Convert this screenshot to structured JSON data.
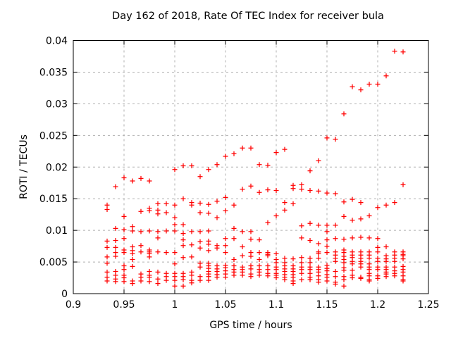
{
  "chart_data": {
    "type": "scatter",
    "title": "Day 162 of 2018, Rate Of TEC Index for receiver bula",
    "xlabel": "GPS time / hours",
    "ylabel": "ROTI / TECUs",
    "xlim": [
      0.9,
      1.25
    ],
    "ylim": [
      0,
      0.04
    ],
    "x_ticks": [
      {
        "v": 0.9,
        "label": "0.9"
      },
      {
        "v": 0.95,
        "label": "0.95"
      },
      {
        "v": 1.0,
        "label": "1"
      },
      {
        "v": 1.05,
        "label": "1.05"
      },
      {
        "v": 1.1,
        "label": "1.1"
      },
      {
        "v": 1.15,
        "label": "1.15"
      },
      {
        "v": 1.2,
        "label": "1.2"
      },
      {
        "v": 1.25,
        "label": "1.25"
      }
    ],
    "y_ticks": [
      {
        "v": 0,
        "label": "0"
      },
      {
        "v": 0.005,
        "label": "0.005"
      },
      {
        "v": 0.01,
        "label": "0.01"
      },
      {
        "v": 0.015,
        "label": "0.015"
      },
      {
        "v": 0.02,
        "label": "0.02"
      },
      {
        "v": 0.025,
        "label": "0.025"
      },
      {
        "v": 0.03,
        "label": "0.03"
      },
      {
        "v": 0.035,
        "label": "0.035"
      },
      {
        "v": 0.04,
        "label": "0.04"
      }
    ],
    "grid": true,
    "legend": "none",
    "marker": {
      "shape": "plus",
      "color": "#ff0000",
      "size": 7
    },
    "grid_color": "#b0b0b0",
    "border_color": "#000000",
    "series": [
      {
        "name": "ROTI",
        "epochs": [
          {
            "t": 0.9333,
            "values": [
              0.014,
              0.0133,
              0.0083,
              0.0073,
              0.0058,
              0.0048,
              0.0034,
              0.0026,
              0.002
            ]
          },
          {
            "t": 0.9417,
            "values": [
              0.0169,
              0.0103,
              0.0084,
              0.0073,
              0.0065,
              0.0059,
              0.0035,
              0.0029,
              0.0023,
              0.0019
            ]
          },
          {
            "t": 0.95,
            "values": [
              0.0183,
              0.0122,
              0.0101,
              0.0087,
              0.0069,
              0.0065,
              0.0044,
              0.0038,
              0.0029,
              0.0025,
              0.0019
            ]
          },
          {
            "t": 0.9583,
            "values": [
              0.0178,
              0.0106,
              0.0099,
              0.0074,
              0.0068,
              0.0063,
              0.0054,
              0.0043,
              0.002,
              0.0016
            ]
          },
          {
            "t": 0.9667,
            "values": [
              0.0182,
              0.013,
              0.0098,
              0.0076,
              0.0066,
              0.0031,
              0.0026,
              0.002
            ]
          },
          {
            "t": 0.975,
            "values": [
              0.0178,
              0.0135,
              0.0131,
              0.0099,
              0.0069,
              0.0066,
              0.0063,
              0.0058,
              0.0035,
              0.0029,
              0.0026,
              0.0019
            ]
          },
          {
            "t": 0.9833,
            "values": [
              0.0142,
              0.0132,
              0.0126,
              0.0098,
              0.0088,
              0.0066,
              0.0034,
              0.0023,
              0.0016
            ]
          },
          {
            "t": 0.9917,
            "values": [
              0.0142,
              0.0128,
              0.0099,
              0.0065,
              0.0032,
              0.0027,
              0.0021
            ]
          },
          {
            "t": 1.0,
            "values": [
              0.0196,
              0.014,
              0.012,
              0.0109,
              0.0099,
              0.0065,
              0.0047,
              0.0032,
              0.0027,
              0.0021,
              0.0012
            ]
          },
          {
            "t": 1.0083,
            "values": [
              0.0202,
              0.015,
              0.0109,
              0.0095,
              0.0085,
              0.0076,
              0.0057,
              0.0032,
              0.0027,
              0.0022,
              0.0012
            ]
          },
          {
            "t": 1.0167,
            "values": [
              0.0202,
              0.0144,
              0.014,
              0.0098,
              0.0077,
              0.0058,
              0.0034,
              0.0029,
              0.0021,
              0.0017
            ]
          },
          {
            "t": 1.025,
            "values": [
              0.0185,
              0.0143,
              0.0128,
              0.0098,
              0.0082,
              0.0072,
              0.0048,
              0.0042,
              0.0027,
              0.0021
            ]
          },
          {
            "t": 1.0333,
            "values": [
              0.0196,
              0.0141,
              0.0127,
              0.0099,
              0.0083,
              0.0078,
              0.0068,
              0.0048,
              0.0044,
              0.004,
              0.0035,
              0.0031,
              0.0027,
              0.0021
            ]
          },
          {
            "t": 1.0417,
            "values": [
              0.0204,
              0.0146,
              0.012,
              0.0076,
              0.0072,
              0.0044,
              0.0039,
              0.0035,
              0.003,
              0.0026
            ]
          },
          {
            "t": 1.05,
            "values": [
              0.0217,
              0.0152,
              0.0131,
              0.0087,
              0.0076,
              0.0065,
              0.0045,
              0.0041,
              0.0036,
              0.0031,
              0.0026
            ]
          },
          {
            "t": 1.0583,
            "values": [
              0.0221,
              0.014,
              0.0103,
              0.0087,
              0.0054,
              0.0044,
              0.0038,
              0.0034,
              0.0029
            ]
          },
          {
            "t": 1.0667,
            "values": [
              0.023,
              0.0165,
              0.0098,
              0.0074,
              0.006,
              0.0042,
              0.0038,
              0.0034,
              0.0029
            ]
          },
          {
            "t": 1.075,
            "values": [
              0.023,
              0.017,
              0.0098,
              0.0086,
              0.0065,
              0.0059,
              0.0044,
              0.0039,
              0.0031,
              0.0027
            ]
          },
          {
            "t": 1.0833,
            "values": [
              0.0204,
              0.016,
              0.0085,
              0.0065,
              0.0054,
              0.0044,
              0.0038,
              0.0034,
              0.0029
            ]
          },
          {
            "t": 1.0917,
            "values": [
              0.0203,
              0.0164,
              0.0112,
              0.0065,
              0.0062,
              0.006,
              0.0044,
              0.0038,
              0.0032,
              0.0028
            ]
          },
          {
            "t": 1.1,
            "values": [
              0.0223,
              0.0163,
              0.0123,
              0.0063,
              0.0054,
              0.0049,
              0.0042,
              0.0038,
              0.0032,
              0.0029,
              0.0025
            ]
          },
          {
            "t": 1.1083,
            "values": [
              0.0228,
              0.0144,
              0.0132,
              0.0056,
              0.0049,
              0.0044,
              0.0039,
              0.0035,
              0.003,
              0.0026,
              0.0022
            ]
          },
          {
            "t": 1.1167,
            "values": [
              0.0171,
              0.0166,
              0.0142,
              0.0055,
              0.0044,
              0.0039,
              0.0035,
              0.003,
              0.0026,
              0.002,
              0.0016
            ]
          },
          {
            "t": 1.125,
            "values": [
              0.0172,
              0.0165,
              0.0107,
              0.0088,
              0.0057,
              0.0049,
              0.0042,
              0.0038,
              0.0032,
              0.0022
            ]
          },
          {
            "t": 1.1333,
            "values": [
              0.0194,
              0.0163,
              0.0111,
              0.0084,
              0.0056,
              0.0049,
              0.0042,
              0.0038,
              0.0032,
              0.0026,
              0.0022
            ]
          },
          {
            "t": 1.1417,
            "values": [
              0.021,
              0.0162,
              0.0108,
              0.0079,
              0.0066,
              0.0063,
              0.0056,
              0.0042,
              0.0038,
              0.0034,
              0.0028,
              0.0022,
              0.0018
            ]
          },
          {
            "t": 1.15,
            "values": [
              0.0246,
              0.0159,
              0.0108,
              0.0098,
              0.0085,
              0.0075,
              0.0065,
              0.0045,
              0.004,
              0.0036,
              0.003,
              0.0026,
              0.002
            ]
          },
          {
            "t": 1.1583,
            "values": [
              0.0244,
              0.0158,
              0.0108,
              0.0087,
              0.0066,
              0.0061,
              0.0056,
              0.0051,
              0.0035,
              0.0027,
              0.0018,
              0.0015
            ]
          },
          {
            "t": 1.1667,
            "values": [
              0.0284,
              0.0145,
              0.0122,
              0.0086,
              0.0069,
              0.0065,
              0.0059,
              0.0054,
              0.0049,
              0.0041,
              0.0037,
              0.0027,
              0.0022,
              0.0012
            ]
          },
          {
            "t": 1.175,
            "values": [
              0.0327,
              0.0149,
              0.0116,
              0.0088,
              0.0066,
              0.0061,
              0.0057,
              0.0051,
              0.0047,
              0.0037,
              0.0029,
              0.0025
            ]
          },
          {
            "t": 1.1833,
            "values": [
              0.0322,
              0.0144,
              0.0118,
              0.0089,
              0.0066,
              0.0061,
              0.0056,
              0.0051,
              0.0047,
              0.0042,
              0.0026,
              0.0024
            ]
          },
          {
            "t": 1.1917,
            "values": [
              0.0331,
              0.0123,
              0.0088,
              0.0066,
              0.0061,
              0.0056,
              0.0047,
              0.0042,
              0.0038,
              0.0032,
              0.0028,
              0.0022,
              0.002
            ]
          },
          {
            "t": 1.2,
            "values": [
              0.0331,
              0.0136,
              0.0087,
              0.0073,
              0.0066,
              0.0056,
              0.0051,
              0.0042,
              0.0038,
              0.0028,
              0.0024
            ]
          },
          {
            "t": 1.2083,
            "values": [
              0.0344,
              0.014,
              0.0074,
              0.006,
              0.0055,
              0.0051,
              0.0042,
              0.0038,
              0.0034,
              0.0031,
              0.0027
            ]
          },
          {
            "t": 1.2167,
            "values": [
              0.0383,
              0.0144,
              0.0066,
              0.0061,
              0.0056,
              0.0051,
              0.0042,
              0.0036,
              0.0032,
              0.0028
            ]
          },
          {
            "t": 1.225,
            "values": [
              0.0382,
              0.0172,
              0.0066,
              0.0062,
              0.006,
              0.0055,
              0.0043,
              0.0038,
              0.0034,
              0.0028,
              0.0022,
              0.002
            ]
          }
        ]
      }
    ]
  }
}
